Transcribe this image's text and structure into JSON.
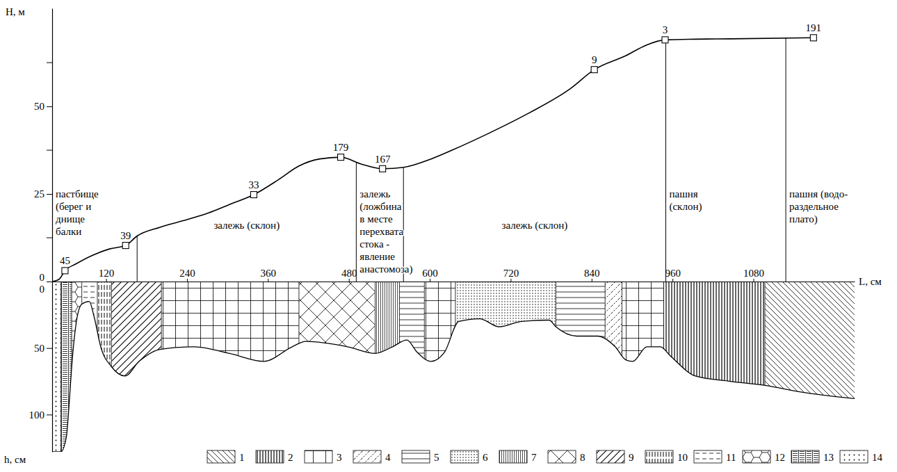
{
  "chart_data": {
    "type": "profile",
    "x_label": "L, см",
    "xlim": [
      40,
      1230
    ],
    "xticks": [
      120,
      240,
      360,
      480,
      600,
      720,
      840,
      960,
      1080
    ],
    "y_label": "H, м",
    "ylim": [
      0,
      78
    ],
    "yticks": [
      0,
      25,
      50
    ],
    "y_minor_ticks": [
      12.5,
      37.5,
      62.5
    ],
    "surface": {
      "x": [
        40,
        50,
        59,
        75,
        100,
        125,
        149,
        166,
        200,
        231,
        272,
        303,
        339,
        375,
        406,
        437,
        468,
        499,
        530,
        561,
        602,
        633,
        684,
        746,
        808,
        844,
        891,
        921,
        949,
        994,
        1045,
        1169
      ],
      "values": [
        0,
        0.6,
        3.1,
        5,
        7.5,
        9.3,
        10.3,
        13,
        15.5,
        17.2,
        19.6,
        22,
        24.8,
        29,
        33,
        35,
        35.5,
        33.5,
        32.2,
        32.6,
        35,
        37.5,
        42,
        48,
        55,
        60.5,
        64.5,
        67.5,
        69,
        69.2,
        69.3,
        69.6
      ]
    },
    "points": {
      "labels": [
        "45",
        "39",
        "33",
        "179",
        "167",
        "9",
        "3",
        "191"
      ],
      "x": [
        59,
        149,
        339,
        468,
        530,
        844,
        949,
        1169
      ],
      "values": [
        3.1,
        10.3,
        24.8,
        35.5,
        32.2,
        60.5,
        69,
        69.6
      ]
    },
    "land_use": [
      {
        "lines": [
          "пастбище",
          "(берег и",
          "днище",
          "балки"
        ],
        "x": [
          40,
          166
        ]
      },
      {
        "lines": [
          "залежь (склон)"
        ],
        "x": [
          166,
          491
        ]
      },
      {
        "lines": [
          "залежь",
          "(ложбина",
          "в месте",
          "перехвата",
          "стока -",
          "явление",
          "анастомоза)"
        ],
        "x": [
          491,
          561
        ]
      },
      {
        "lines": [
          "залежь (склон)"
        ],
        "x": [
          561,
          950
        ]
      },
      {
        "lines": [
          "пашня",
          "(склон)"
        ],
        "x": [
          950,
          1128
        ]
      },
      {
        "lines": [
          "пашня (водо-",
          "раздельное",
          "плато)"
        ],
        "x": [
          1128,
          1230
        ]
      }
    ],
    "depth_label": "h, см",
    "depth_lim": [
      0,
      128
    ],
    "depth_ticks": [
      0,
      50,
      100
    ],
    "soil_boundary": {
      "x": [
        40,
        53,
        61,
        66,
        69,
        76,
        84,
        95,
        102,
        112,
        128,
        148,
        169,
        200,
        251,
        303,
        354,
        396,
        416,
        478,
        519,
        545,
        566,
        581,
        602,
        622,
        643,
        674,
        703,
        736,
        777,
        787,
        818,
        849,
        875,
        891,
        901,
        922,
        942,
        957,
        994,
        1045,
        1097,
        1150,
        1230
      ],
      "values": [
        128,
        128,
        117,
        86,
        64,
        30,
        17,
        15,
        26,
        49,
        64,
        71,
        60,
        51,
        49,
        54,
        60,
        49,
        45,
        49,
        54,
        49,
        44,
        53,
        60,
        53,
        30,
        28,
        34,
        30,
        29,
        34,
        41,
        41,
        49,
        59,
        60,
        49,
        49,
        56,
        71,
        75,
        78,
        83,
        88
      ]
    },
    "horizons": [
      {
        "pattern": "14",
        "x": [
          40,
          53
        ]
      },
      {
        "pattern": "13",
        "x": [
          53,
          69
        ]
      },
      {
        "pattern": "12",
        "x": [
          69,
          84
        ]
      },
      {
        "pattern": "11",
        "x": [
          84,
          107
        ]
      },
      {
        "pattern": "10",
        "x": [
          107,
          128
        ]
      },
      {
        "pattern": "9",
        "x": [
          128,
          202
        ]
      },
      {
        "pattern": "3",
        "x": [
          202,
          406
        ]
      },
      {
        "pattern": "8",
        "x": [
          406,
          519
        ]
      },
      {
        "pattern": "7",
        "x": [
          519,
          555
        ]
      },
      {
        "pattern": "5",
        "x": [
          555,
          592
        ]
      },
      {
        "pattern": "3",
        "x": [
          592,
          638
        ]
      },
      {
        "pattern": "6",
        "x": [
          638,
          787
        ]
      },
      {
        "pattern": "5",
        "x": [
          787,
          860
        ]
      },
      {
        "pattern": "4",
        "x": [
          860,
          885
        ]
      },
      {
        "pattern": "3",
        "x": [
          885,
          947
        ]
      },
      {
        "pattern": "2",
        "x": [
          947,
          1097
        ]
      },
      {
        "pattern": "1",
        "x": [
          1097,
          1230
        ]
      }
    ],
    "legend_items": [
      "1",
      "2",
      "3",
      "4",
      "5",
      "6",
      "7",
      "8",
      "9",
      "10",
      "11",
      "12",
      "13",
      "14"
    ]
  }
}
